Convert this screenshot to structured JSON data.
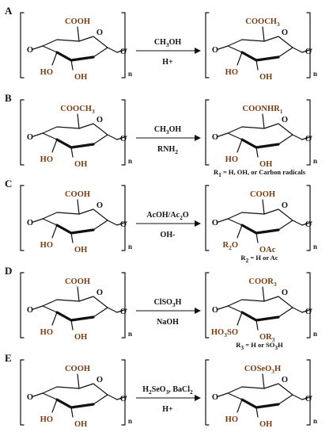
{
  "colors": {
    "ink": "#111111",
    "highlight": "#7a3b10"
  },
  "panels": [
    {
      "label": "A",
      "reactant": {
        "carboxyl": "COOH",
        "hydroxyl_left": "HO",
        "hydroxyl_right": "OH",
        "ring_oxygen": "O",
        "ring_oxygen_bridge": "O",
        "left_link": "O",
        "repeat": "n"
      },
      "reagent_top": "CH3OH",
      "reagent_bottom": "H+",
      "product": {
        "carboxyl": "COOCH3",
        "hydroxyl_left": "HO",
        "hydroxyl_right": "OH",
        "ring_oxygen": "O",
        "ring_oxygen_bridge": "O",
        "left_link": "O",
        "repeat": "n"
      },
      "note": ""
    },
    {
      "label": "B",
      "reactant": {
        "carboxyl": "COOCH3",
        "hydroxyl_left": "HO",
        "hydroxyl_right": "OH",
        "ring_oxygen": "O",
        "ring_oxygen_bridge": "O",
        "left_link": "O",
        "repeat": "n"
      },
      "reagent_top": "CH3OH",
      "reagent_bottom": "RNH2",
      "product": {
        "carboxyl": "COONHR1",
        "hydroxyl_left": "HO",
        "hydroxyl_right": "OH",
        "ring_oxygen": "O",
        "ring_oxygen_bridge": "O",
        "left_link": "O",
        "repeat": "n"
      },
      "note": "R1 = H, OH, or Carbon radicals"
    },
    {
      "label": "C",
      "reactant": {
        "carboxyl": "COOH",
        "hydroxyl_left": "HO",
        "hydroxyl_right": "OH",
        "ring_oxygen": "O",
        "ring_oxygen_bridge": "O",
        "left_link": "O",
        "repeat": "n"
      },
      "reagent_top": "AcOH/Ac2O",
      "reagent_bottom": "OH-",
      "product": {
        "carboxyl": "COOH",
        "hydroxyl_left": "R2O",
        "hydroxyl_right": "OAc",
        "ring_oxygen": "O",
        "ring_oxygen_bridge": "O",
        "left_link": "O",
        "repeat": "n"
      },
      "note": "R2 = H or Ac"
    },
    {
      "label": "D",
      "reactant": {
        "carboxyl": "COOH",
        "hydroxyl_left": "HO",
        "hydroxyl_right": "OH",
        "ring_oxygen": "O",
        "ring_oxygen_bridge": "O",
        "left_link": "O",
        "repeat": "n"
      },
      "reagent_top": "ClSO3H",
      "reagent_bottom": "NaOH",
      "product": {
        "carboxyl": "COOR3",
        "hydroxyl_left": "HO3SO",
        "hydroxyl_right": "OR3",
        "ring_oxygen": "O",
        "ring_oxygen_bridge": "O",
        "left_link": "O",
        "repeat": "n"
      },
      "note": "R3 = H or SO3H"
    },
    {
      "label": "E",
      "reactant": {
        "carboxyl": "COOH",
        "hydroxyl_left": "HO",
        "hydroxyl_right": "OH",
        "ring_oxygen": "O",
        "ring_oxygen_bridge": "O",
        "left_link": "O",
        "repeat": "n"
      },
      "reagent_top": "H2SeO3, BaCl2",
      "reagent_bottom": "H+",
      "product": {
        "carboxyl": "COSeO3H",
        "hydroxyl_left": "HO",
        "hydroxyl_right": "OH",
        "ring_oxygen": "O",
        "ring_oxygen_bridge": "O",
        "left_link": "O",
        "repeat": "n"
      },
      "note": ""
    }
  ]
}
